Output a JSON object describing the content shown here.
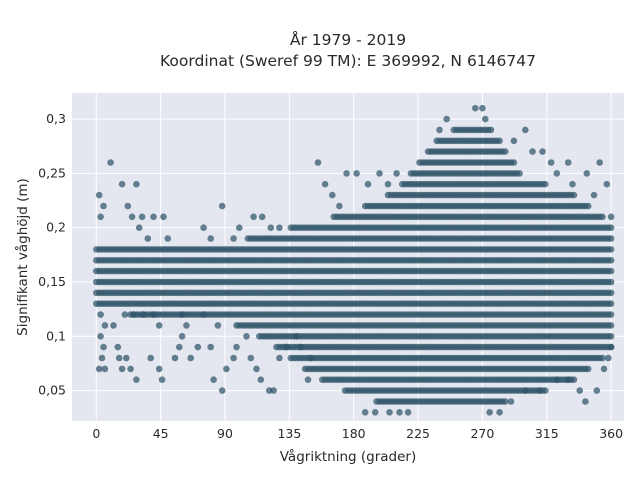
{
  "chart_data": {
    "type": "scatter",
    "title_line1": "År 1979 - 2019",
    "title_line2": "Koordinat (Sweref 99 TM): E 369992, N 6146747",
    "xlabel": "Vågriktning (grader)",
    "ylabel": "Signifikant våghöjd (m)",
    "xlim": [
      -17,
      369
    ],
    "ylim": [
      0.022,
      0.324
    ],
    "xticks": [
      0,
      45,
      90,
      135,
      180,
      225,
      270,
      315,
      360
    ],
    "xtick_labels": [
      "0",
      "45",
      "90",
      "135",
      "180",
      "225",
      "270",
      "315",
      "360"
    ],
    "yticks": [
      0.05,
      0.1,
      0.15,
      0.2,
      0.25,
      0.3
    ],
    "ytick_labels": [
      "0,05",
      "0,1",
      "0,15",
      "0,2",
      "0,25",
      "0,3"
    ],
    "grid": true,
    "marker_color": "#2f5468",
    "value_resolution": 0.01,
    "band_profile": [
      {
        "x": 0,
        "ymin": 0.13,
        "ymax": 0.18
      },
      {
        "x": 45,
        "ymin": 0.12,
        "ymax": 0.18
      },
      {
        "x": 90,
        "ymin": 0.12,
        "ymax": 0.18
      },
      {
        "x": 120,
        "ymin": 0.1,
        "ymax": 0.19
      },
      {
        "x": 150,
        "ymin": 0.07,
        "ymax": 0.2
      },
      {
        "x": 180,
        "ymin": 0.05,
        "ymax": 0.21
      },
      {
        "x": 210,
        "ymin": 0.04,
        "ymax": 0.23
      },
      {
        "x": 240,
        "ymin": 0.04,
        "ymax": 0.28
      },
      {
        "x": 260,
        "ymin": 0.04,
        "ymax": 0.29
      },
      {
        "x": 275,
        "ymin": 0.04,
        "ymax": 0.29
      },
      {
        "x": 300,
        "ymin": 0.05,
        "ymax": 0.24
      },
      {
        "x": 330,
        "ymin": 0.06,
        "ymax": 0.23
      },
      {
        "x": 360,
        "ymin": 0.09,
        "ymax": 0.2
      }
    ],
    "sparse_points": [
      [
        10,
        0.26
      ],
      [
        2,
        0.23
      ],
      [
        5,
        0.22
      ],
      [
        3,
        0.21
      ],
      [
        18,
        0.24
      ],
      [
        28,
        0.24
      ],
      [
        22,
        0.22
      ],
      [
        25,
        0.21
      ],
      [
        32,
        0.21
      ],
      [
        40,
        0.21
      ],
      [
        47,
        0.21
      ],
      [
        30,
        0.2
      ],
      [
        36,
        0.19
      ],
      [
        50,
        0.19
      ],
      [
        75,
        0.2
      ],
      [
        80,
        0.19
      ],
      [
        88,
        0.22
      ],
      [
        96,
        0.19
      ],
      [
        100,
        0.2
      ],
      [
        110,
        0.21
      ],
      [
        116,
        0.21
      ],
      [
        122,
        0.2
      ],
      [
        128,
        0.2
      ],
      [
        3,
        0.12
      ],
      [
        6,
        0.11
      ],
      [
        12,
        0.11
      ],
      [
        20,
        0.12
      ],
      [
        26,
        0.12
      ],
      [
        33,
        0.12
      ],
      [
        40,
        0.12
      ],
      [
        44,
        0.11
      ],
      [
        60,
        0.12
      ],
      [
        63,
        0.11
      ],
      [
        75,
        0.12
      ],
      [
        85,
        0.11
      ],
      [
        3,
        0.1
      ],
      [
        5,
        0.09
      ],
      [
        4,
        0.08
      ],
      [
        2,
        0.07
      ],
      [
        6,
        0.07
      ],
      [
        15,
        0.09
      ],
      [
        16,
        0.08
      ],
      [
        18,
        0.07
      ],
      [
        21,
        0.08
      ],
      [
        24,
        0.07
      ],
      [
        28,
        0.06
      ],
      [
        38,
        0.08
      ],
      [
        44,
        0.07
      ],
      [
        46,
        0.06
      ],
      [
        55,
        0.08
      ],
      [
        58,
        0.09
      ],
      [
        60,
        0.1
      ],
      [
        66,
        0.08
      ],
      [
        71,
        0.09
      ],
      [
        80,
        0.09
      ],
      [
        82,
        0.06
      ],
      [
        88,
        0.05
      ],
      [
        91,
        0.07
      ],
      [
        96,
        0.08
      ],
      [
        98,
        0.09
      ],
      [
        105,
        0.1
      ],
      [
        108,
        0.08
      ],
      [
        112,
        0.07
      ],
      [
        115,
        0.06
      ],
      [
        121,
        0.05
      ],
      [
        124,
        0.05
      ],
      [
        128,
        0.08
      ],
      [
        133,
        0.09
      ],
      [
        140,
        0.1
      ],
      [
        143,
        0.09
      ],
      [
        150,
        0.08
      ],
      [
        148,
        0.06
      ],
      [
        155,
        0.26
      ],
      [
        160,
        0.24
      ],
      [
        165,
        0.23
      ],
      [
        170,
        0.22
      ],
      [
        175,
        0.25
      ],
      [
        182,
        0.25
      ],
      [
        190,
        0.24
      ],
      [
        198,
        0.25
      ],
      [
        204,
        0.24
      ],
      [
        210,
        0.25
      ],
      [
        188,
        0.03
      ],
      [
        195,
        0.03
      ],
      [
        205,
        0.03
      ],
      [
        212,
        0.03
      ],
      [
        218,
        0.03
      ],
      [
        275,
        0.03
      ],
      [
        282,
        0.03
      ],
      [
        290,
        0.04
      ],
      [
        300,
        0.05
      ],
      [
        310,
        0.05
      ],
      [
        322,
        0.06
      ],
      [
        330,
        0.06
      ],
      [
        338,
        0.05
      ],
      [
        342,
        0.04
      ],
      [
        350,
        0.05
      ],
      [
        355,
        0.07
      ],
      [
        358,
        0.08
      ],
      [
        360,
        0.09
      ],
      [
        300,
        0.29
      ],
      [
        312,
        0.27
      ],
      [
        318,
        0.26
      ],
      [
        322,
        0.25
      ],
      [
        330,
        0.26
      ],
      [
        333,
        0.24
      ],
      [
        343,
        0.25
      ],
      [
        348,
        0.23
      ],
      [
        352,
        0.26
      ],
      [
        357,
        0.24
      ],
      [
        360,
        0.21
      ],
      [
        245,
        0.3
      ],
      [
        240,
        0.29
      ],
      [
        292,
        0.28
      ],
      [
        305,
        0.27
      ],
      [
        265,
        0.31
      ],
      [
        270,
        0.31
      ],
      [
        272,
        0.3
      ]
    ]
  }
}
